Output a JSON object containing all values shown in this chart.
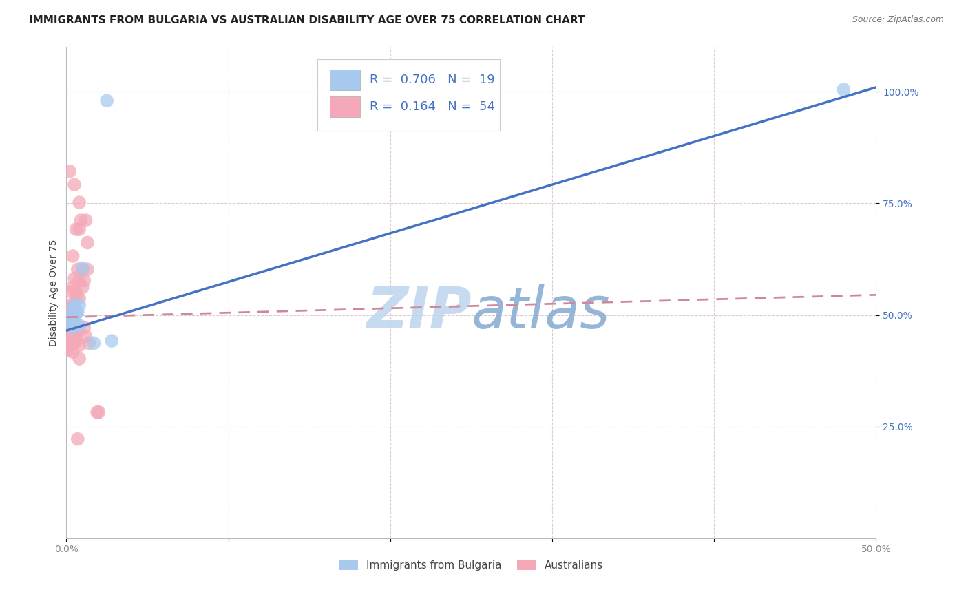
{
  "title": "IMMIGRANTS FROM BULGARIA VS AUSTRALIAN DISABILITY AGE OVER 75 CORRELATION CHART",
  "source": "Source: ZipAtlas.com",
  "ylabel_label": "Disability Age Over 75",
  "xlim": [
    0.0,
    0.5
  ],
  "ylim": [
    0.0,
    1.1
  ],
  "y_ticks": [
    0.25,
    0.5,
    0.75,
    1.0
  ],
  "y_tick_labels": [
    "25.0%",
    "50.0%",
    "75.0%",
    "100.0%"
  ],
  "bulgaria_color": "#A8CAEE",
  "australia_color": "#F4A8B8",
  "bulgaria_line_color": "#4472C4",
  "australia_line_color": "#D08898",
  "legend_text_color": "#4472C4",
  "watermark_zip_color": "#C8DCF0",
  "watermark_atlas_color": "#8BAED4",
  "R_bulgaria": 0.706,
  "N_bulgaria": 19,
  "R_australia": 0.164,
  "N_australia": 54,
  "bulgaria_line": [
    0.0,
    0.465,
    0.5,
    1.01
  ],
  "australia_line": [
    0.0,
    0.495,
    0.5,
    0.545
  ],
  "bulgaria_points": [
    [
      0.025,
      0.98
    ],
    [
      0.01,
      0.605
    ],
    [
      0.005,
      0.515
    ],
    [
      0.005,
      0.522
    ],
    [
      0.006,
      0.505
    ],
    [
      0.008,
      0.522
    ],
    [
      0.004,
      0.492
    ],
    [
      0.003,
      0.492
    ],
    [
      0.003,
      0.502
    ],
    [
      0.004,
      0.482
    ],
    [
      0.005,
      0.487
    ],
    [
      0.006,
      0.502
    ],
    [
      0.007,
      0.507
    ],
    [
      0.005,
      0.513
    ],
    [
      0.004,
      0.472
    ],
    [
      0.008,
      0.477
    ],
    [
      0.017,
      0.437
    ],
    [
      0.028,
      0.442
    ],
    [
      0.48,
      1.005
    ]
  ],
  "australia_points": [
    [
      0.002,
      0.822
    ],
    [
      0.005,
      0.792
    ],
    [
      0.008,
      0.752
    ],
    [
      0.009,
      0.712
    ],
    [
      0.012,
      0.712
    ],
    [
      0.006,
      0.692
    ],
    [
      0.008,
      0.692
    ],
    [
      0.013,
      0.662
    ],
    [
      0.004,
      0.632
    ],
    [
      0.007,
      0.602
    ],
    [
      0.01,
      0.602
    ],
    [
      0.013,
      0.602
    ],
    [
      0.005,
      0.582
    ],
    [
      0.008,
      0.577
    ],
    [
      0.011,
      0.577
    ],
    [
      0.01,
      0.562
    ],
    [
      0.004,
      0.562
    ],
    [
      0.003,
      0.552
    ],
    [
      0.006,
      0.552
    ],
    [
      0.006,
      0.542
    ],
    [
      0.008,
      0.537
    ],
    [
      0.005,
      0.522
    ],
    [
      0.002,
      0.522
    ],
    [
      0.003,
      0.517
    ],
    [
      0.004,
      0.512
    ],
    [
      0.004,
      0.502
    ],
    [
      0.005,
      0.502
    ],
    [
      0.003,
      0.497
    ],
    [
      0.002,
      0.492
    ],
    [
      0.003,
      0.492
    ],
    [
      0.005,
      0.487
    ],
    [
      0.004,
      0.482
    ],
    [
      0.003,
      0.477
    ],
    [
      0.002,
      0.477
    ],
    [
      0.004,
      0.472
    ],
    [
      0.005,
      0.467
    ],
    [
      0.006,
      0.462
    ],
    [
      0.007,
      0.462
    ],
    [
      0.002,
      0.457
    ],
    [
      0.004,
      0.452
    ],
    [
      0.003,
      0.442
    ],
    [
      0.006,
      0.442
    ],
    [
      0.014,
      0.437
    ],
    [
      0.005,
      0.437
    ],
    [
      0.008,
      0.432
    ],
    [
      0.002,
      0.432
    ],
    [
      0.002,
      0.422
    ],
    [
      0.004,
      0.417
    ],
    [
      0.008,
      0.402
    ],
    [
      0.019,
      0.282
    ],
    [
      0.02,
      0.282
    ],
    [
      0.007,
      0.222
    ],
    [
      0.011,
      0.472
    ],
    [
      0.012,
      0.452
    ]
  ],
  "background_color": "#FFFFFF",
  "grid_color": "#DDCCCC",
  "title_fontsize": 11,
  "axis_label_fontsize": 10,
  "tick_fontsize": 10,
  "legend_fontsize": 13,
  "source_fontsize": 9
}
